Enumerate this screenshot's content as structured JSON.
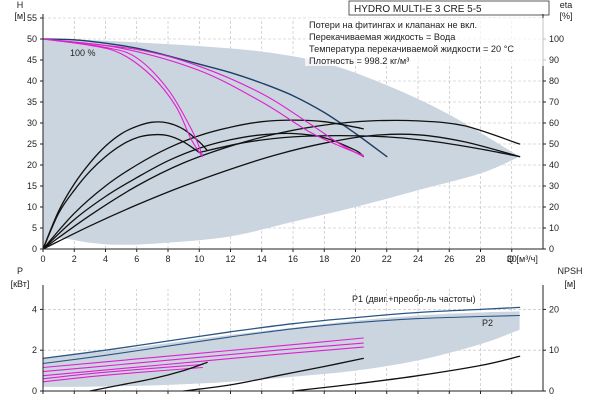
{
  "title": "HYDRO MULTI-E 3 CRE 5-5",
  "notes": [
    "Потери на фитингах и клапанах не вкл.",
    "Перекачиваемая жидкость = Вода",
    "Температура перекачиваемой жидкости = 20 °C",
    "Плотность = 998.2 кг/м³"
  ],
  "colors": {
    "envelope": "#cbd5df",
    "head_curve": "#111111",
    "eta_curve": "#e020d0",
    "p1_curve": "#2b5686",
    "p2_curve": "#2b5686",
    "power_black": "#111111"
  },
  "chart_data": [
    {
      "type": "line",
      "panel": "head",
      "xlabel": "Q [м³/ч]",
      "ylabel_left": "H",
      "yunit_left": "[м]",
      "ylabel_right": "eta",
      "yunit_right": "[%]",
      "xlim": [
        0,
        32
      ],
      "ylim_left": [
        0,
        55
      ],
      "ylim_right": [
        0,
        110
      ],
      "x_ticks": [
        "0",
        "2",
        "4",
        "6",
        "8",
        "10",
        "12",
        "14",
        "16",
        "18",
        "20",
        "22",
        "24",
        "26",
        "28",
        "30"
      ],
      "y_ticks_left": [
        "0",
        "5",
        "10",
        "15",
        "20",
        "25",
        "30",
        "35",
        "40",
        "45",
        "50",
        "55"
      ],
      "y_ticks_right": [
        "0",
        "10",
        "20",
        "30",
        "40",
        "50",
        "60",
        "70",
        "80",
        "90",
        "100"
      ],
      "annotation": "100 %",
      "grid": true,
      "envelope": {
        "upper": [
          [
            0,
            50
          ],
          [
            2,
            49.9
          ],
          [
            6,
            49.2
          ],
          [
            10,
            48.3
          ],
          [
            14,
            47
          ],
          [
            18,
            44.3
          ],
          [
            22,
            39
          ],
          [
            26,
            32
          ],
          [
            30.5,
            22
          ]
        ],
        "lower": [
          [
            0,
            0
          ],
          [
            1,
            2.5
          ],
          [
            3,
            1.5
          ],
          [
            5,
            1
          ],
          [
            8,
            1.5
          ],
          [
            12,
            3
          ],
          [
            16,
            6.5
          ],
          [
            20,
            10
          ],
          [
            24,
            14
          ],
          [
            28,
            18
          ],
          [
            30.5,
            22
          ]
        ]
      },
      "series": [
        {
          "kind": "head",
          "values": [
            [
              0,
              50
            ],
            [
              2,
              49.8
            ],
            [
              4,
              49
            ],
            [
              6,
              47.8
            ],
            [
              8,
              46
            ],
            [
              10,
              44
            ],
            [
              12,
              42
            ],
            [
              14,
              39.5
            ],
            [
              16,
              36.5
            ],
            [
              18,
              32.5
            ],
            [
              20,
              27.5
            ],
            [
              22,
              22
            ]
          ]
        },
        {
          "kind": "head",
          "values": [
            [
              0,
              0
            ],
            [
              1,
              9
            ],
            [
              2,
              15.5
            ],
            [
              3,
              20.5
            ],
            [
              4,
              24.5
            ],
            [
              5,
              27.4
            ],
            [
              6,
              29.2
            ],
            [
              7,
              30.2
            ],
            [
              8,
              30
            ],
            [
              9,
              28.5
            ],
            [
              10,
              25.5
            ],
            [
              10.5,
              23.5
            ]
          ]
        },
        {
          "kind": "head",
          "values": [
            [
              0,
              0
            ],
            [
              1,
              8.5
            ],
            [
              2,
              14
            ],
            [
              3,
              18.5
            ],
            [
              4,
              22
            ],
            [
              5,
              24.7
            ],
            [
              6,
              26.5
            ],
            [
              7,
              27.2
            ],
            [
              8,
              27
            ],
            [
              9,
              25.5
            ],
            [
              10,
              23
            ]
          ]
        },
        {
          "kind": "head",
          "values": [
            [
              0,
              0
            ],
            [
              2,
              8.5
            ],
            [
              4,
              15
            ],
            [
              6,
              20
            ],
            [
              8,
              24
            ],
            [
              10,
              27
            ],
            [
              12,
              29
            ],
            [
              14,
              30.3
            ],
            [
              16,
              30.7
            ],
            [
              18,
              30.3
            ],
            [
              20,
              29
            ],
            [
              20.5,
              28.6
            ]
          ]
        },
        {
          "kind": "head",
          "values": [
            [
              0,
              0
            ],
            [
              2,
              7
            ],
            [
              4,
              12.5
            ],
            [
              6,
              17
            ],
            [
              8,
              21
            ],
            [
              10,
              24
            ],
            [
              12,
              26
            ],
            [
              14,
              27.2
            ],
            [
              16,
              27.5
            ],
            [
              18,
              26.5
            ],
            [
              20,
              23.5
            ],
            [
              20.5,
              22
            ]
          ]
        },
        {
          "kind": "head",
          "values": [
            [
              0,
              0
            ],
            [
              3,
              8
            ],
            [
              6,
              15
            ],
            [
              9,
              20.5
            ],
            [
              12,
              24.5
            ],
            [
              15,
              27.5
            ],
            [
              18,
              29.5
            ],
            [
              21,
              30.5
            ],
            [
              24,
              30.5
            ],
            [
              27,
              29.3
            ],
            [
              30.5,
              25
            ]
          ]
        },
        {
          "kind": "head",
          "values": [
            [
              0,
              0
            ],
            [
              3,
              5.5
            ],
            [
              6,
              10.5
            ],
            [
              9,
              15
            ],
            [
              12,
              19
            ],
            [
              15,
              22.5
            ],
            [
              18,
              25.2
            ],
            [
              21,
              27
            ],
            [
              24,
              27.2
            ],
            [
              27,
              25.5
            ],
            [
              30.5,
              22
            ]
          ]
        },
        {
          "kind": "head",
          "values": [
            [
              10,
              23
            ],
            [
              13,
              25.4
            ],
            [
              16,
              26.7
            ],
            [
              19,
              27
            ],
            [
              22,
              26.7
            ],
            [
              25,
              25.6
            ],
            [
              28,
              23.8
            ],
            [
              30.5,
              22
            ]
          ]
        },
        {
          "kind": "eta",
          "values": [
            [
              0,
              50
            ],
            [
              3,
              48.5
            ],
            [
              5,
              46.5
            ],
            [
              7,
              41
            ],
            [
              8.5,
              34
            ],
            [
              9.5,
              26
            ],
            [
              10.2,
              22
            ]
          ]
        },
        {
          "kind": "eta",
          "values": [
            [
              0,
              50
            ],
            [
              4,
              48
            ],
            [
              6,
              45.5
            ],
            [
              8,
              38
            ],
            [
              9.5,
              28.5
            ],
            [
              10.2,
              22.3
            ]
          ]
        },
        {
          "kind": "eta",
          "values": [
            [
              0,
              50
            ],
            [
              6,
              47.5
            ],
            [
              10,
              43.5
            ],
            [
              14,
              37
            ],
            [
              17,
              30
            ],
            [
              19,
              25
            ],
            [
              20.5,
              22
            ]
          ]
        },
        {
          "kind": "eta",
          "values": [
            [
              0,
              50
            ],
            [
              5,
              47.8
            ],
            [
              10,
              42.5
            ],
            [
              14,
              35
            ],
            [
              17,
              28
            ],
            [
              19,
              24.5
            ],
            [
              20.5,
              22.3
            ]
          ]
        }
      ]
    },
    {
      "type": "line",
      "panel": "power",
      "ylabel_left": "P",
      "yunit_left": "[кВт]",
      "ylabel_right": "NPSH",
      "yunit_right": "[м]",
      "xlim": [
        0,
        32
      ],
      "ylim_left": [
        0,
        5
      ],
      "ylim_right": [
        0,
        25
      ],
      "y_ticks_left": [
        "0",
        "2",
        "4"
      ],
      "y_ticks_right": [
        "0",
        "10",
        "20"
      ],
      "grid": true,
      "legend_labels": [
        "P1 (двиг.+преобр-ль частоты)",
        "P2"
      ],
      "envelope": {
        "upper": [
          [
            0,
            1.6
          ],
          [
            4,
            1.95
          ],
          [
            8,
            2.35
          ],
          [
            12,
            2.75
          ],
          [
            16,
            3.1
          ],
          [
            20,
            3.45
          ],
          [
            24,
            3.7
          ],
          [
            28,
            3.85
          ],
          [
            30.5,
            3.9
          ]
        ],
        "lower": [
          [
            0,
            0.2
          ],
          [
            4,
            0.22
          ],
          [
            8,
            0.3
          ],
          [
            12,
            0.45
          ],
          [
            16,
            0.7
          ],
          [
            20,
            1.0
          ],
          [
            24,
            1.5
          ],
          [
            28,
            2.3
          ],
          [
            30.5,
            3.0
          ]
        ]
      },
      "series": [
        {
          "kind": "P1",
          "name": "P1 (двиг.+преобр-ль частоты)",
          "values": [
            [
              0,
              1.6
            ],
            [
              4,
              2
            ],
            [
              8,
              2.45
            ],
            [
              12,
              2.9
            ],
            [
              16,
              3.3
            ],
            [
              20,
              3.6
            ],
            [
              24,
              3.85
            ],
            [
              28,
              4.0
            ],
            [
              30.5,
              4.1
            ]
          ]
        },
        {
          "kind": "P2",
          "name": "P2",
          "values": [
            [
              0,
              1.35
            ],
            [
              4,
              1.75
            ],
            [
              8,
              2.2
            ],
            [
              12,
              2.65
            ],
            [
              16,
              3.05
            ],
            [
              20,
              3.35
            ],
            [
              24,
              3.55
            ],
            [
              28,
              3.65
            ],
            [
              30.5,
              3.7
            ]
          ]
        },
        {
          "kind": "eta",
          "values": [
            [
              0,
              1.15
            ],
            [
              5,
              1.5
            ],
            [
              10,
              1.85
            ],
            [
              15,
              2.2
            ],
            [
              20.5,
              2.6
            ]
          ]
        },
        {
          "kind": "eta",
          "values": [
            [
              0,
              0.95
            ],
            [
              5,
              1.3
            ],
            [
              10,
              1.65
            ],
            [
              15,
              2.0
            ],
            [
              20.5,
              2.35
            ]
          ]
        },
        {
          "kind": "eta",
          "values": [
            [
              0,
              0.75
            ],
            [
              5,
              1.1
            ],
            [
              10,
              1.45
            ],
            [
              15,
              1.8
            ],
            [
              20.5,
              2.15
            ]
          ]
        },
        {
          "kind": "eta",
          "values": [
            [
              0,
              0.6
            ],
            [
              3,
              0.85
            ],
            [
              6,
              1.05
            ],
            [
              10.2,
              1.3
            ]
          ]
        },
        {
          "kind": "eta",
          "values": [
            [
              0,
              0.45
            ],
            [
              3,
              0.7
            ],
            [
              6,
              0.9
            ],
            [
              10.2,
              1.15
            ]
          ]
        },
        {
          "kind": "black",
          "values": [
            [
              3,
              0
            ],
            [
              5,
              0.3
            ],
            [
              7,
              0.6
            ],
            [
              9,
              1.0
            ],
            [
              10.5,
              1.4
            ]
          ]
        },
        {
          "kind": "black",
          "values": [
            [
              9,
              0
            ],
            [
              12,
              0.3
            ],
            [
              15,
              0.75
            ],
            [
              18,
              1.2
            ],
            [
              20.5,
              1.6
            ]
          ]
        },
        {
          "kind": "black",
          "values": [
            [
              16,
              0
            ],
            [
              20,
              0.35
            ],
            [
              24,
              0.75
            ],
            [
              28,
              1.25
            ],
            [
              30.5,
              1.7
            ]
          ]
        }
      ]
    }
  ]
}
